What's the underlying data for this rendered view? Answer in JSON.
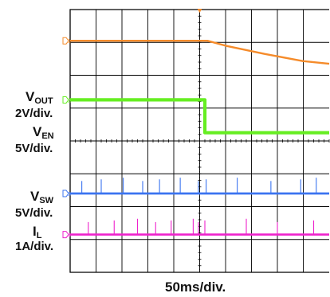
{
  "chart_data": {
    "type": "line",
    "x_scale": "50ms/div.",
    "grid": true,
    "divisions": {
      "x": 10,
      "y": 8
    },
    "colors": {
      "background": "#ffffff",
      "grid": "#000000",
      "ch1": "#f58b2a",
      "ch2": "#66ee22",
      "ch3": "#3b74f0",
      "ch4": "#ee22cc",
      "trigger": "#f58b2a"
    },
    "channel_labels": [
      {
        "signal": "V",
        "sub": "OUT",
        "scale": "2V/div."
      },
      {
        "signal": "V",
        "sub": "EN",
        "scale": "5V/div."
      },
      {
        "signal": "V",
        "sub": "SW",
        "scale": "5V/div."
      },
      {
        "signal": "I",
        "sub": "L",
        "scale": "1A/div."
      }
    ],
    "markers": [
      "1",
      "2",
      "3",
      "4"
    ],
    "series": [
      {
        "name": "VOUT",
        "points": [
          [
            0,
            7.05
          ],
          [
            5.3,
            7.05
          ],
          [
            6.0,
            6.9
          ],
          [
            7.5,
            6.65
          ],
          [
            9.0,
            6.43
          ],
          [
            10,
            6.35
          ]
        ]
      },
      {
        "name": "VEN",
        "points": [
          [
            0,
            5.25
          ],
          [
            5.2,
            5.25
          ],
          [
            5.2,
            4.25
          ],
          [
            10,
            4.25
          ]
        ]
      },
      {
        "name": "VSW",
        "points": [
          [
            0,
            2.4
          ],
          [
            10,
            2.4
          ]
        ],
        "spike_times": [
          0.45,
          1.2,
          2.05,
          2.8,
          3.45,
          4.25,
          4.95,
          5.25,
          6.45,
          7.75,
          8.9,
          9.5
        ]
      },
      {
        "name": "IL",
        "points": [
          [
            0,
            1.15
          ],
          [
            10,
            1.15
          ]
        ],
        "spike_times": [
          0.7,
          1.7,
          2.6,
          3.3,
          3.9,
          4.75,
          4.95,
          5.2,
          6.8,
          8.0,
          9.4
        ]
      }
    ]
  }
}
